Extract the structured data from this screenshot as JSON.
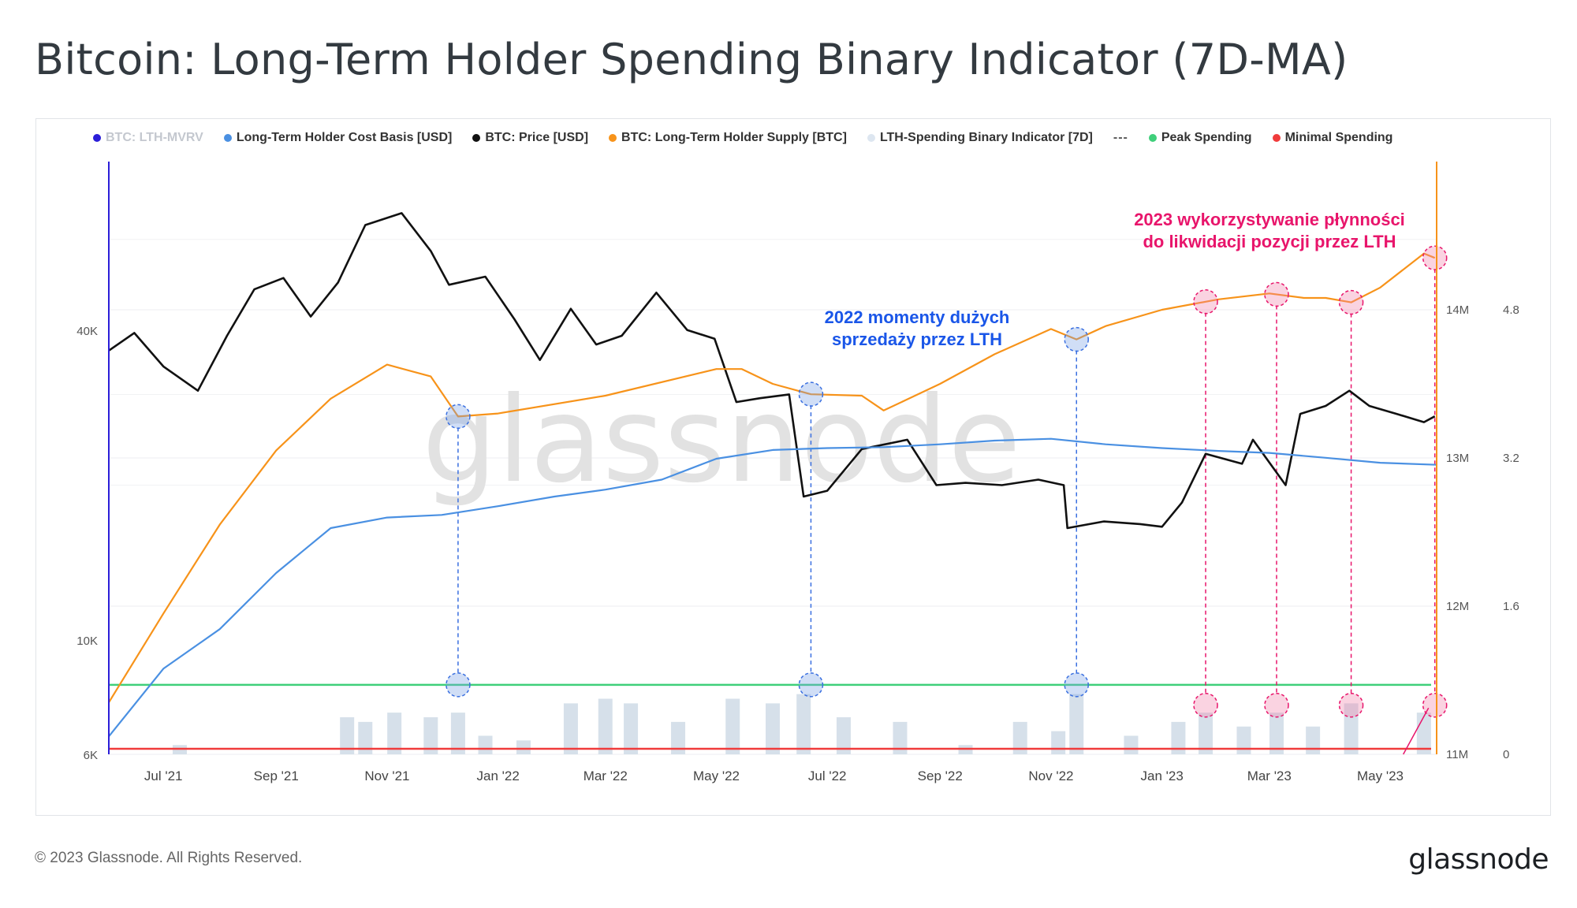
{
  "page": {
    "title": "Bitcoin: Long-Term Holder Spending Binary Indicator (7D-MA)"
  },
  "legend": [
    {
      "label": "BTC: LTH-MVRV",
      "color": "#2b1ed8",
      "faded": true
    },
    {
      "label": "Long-Term Holder Cost Basis [USD]",
      "color": "#4a90e2",
      "faded": false
    },
    {
      "label": "BTC: Price [USD]",
      "color": "#111111",
      "faded": false
    },
    {
      "label": "BTC: Long-Term Holder Supply [BTC]",
      "color": "#f7931a",
      "faded": false
    },
    {
      "label": "LTH-Spending Binary Indicator [7D]",
      "color": "#dde6f0",
      "faded": false
    },
    {
      "label": "---",
      "color": null,
      "faded": false
    },
    {
      "label": "Peak Spending",
      "color": "#3fcf7a",
      "faded": false
    },
    {
      "label": "Minimal Spending",
      "color": "#f03b3b",
      "faded": false
    }
  ],
  "watermark": "glassnode",
  "footer": {
    "copyright": "© 2023 Glassnode. All Rights Reserved.",
    "logo": "glassnode"
  },
  "annotations": {
    "blue_line1": "2022 momenty dużych",
    "blue_line2": "sprzedaży przez LTH",
    "pink_line1": "2023 wykorzystywanie płynności",
    "pink_line2": "do likwidacji pozycji przez LTH"
  },
  "colors": {
    "price": "#111111",
    "cost_basis": "#4a90e2",
    "supply": "#f7931a",
    "indicator": "#d2dde8",
    "peak": "#3fcf7a",
    "minimal": "#f03b3b",
    "lth_mvrv_axis": "#2b1ed8",
    "blue_annotation": "#1a56e8",
    "pink_annotation": "#e8156b"
  },
  "chart_data": {
    "type": "line",
    "x_ticks": [
      "Jul '21",
      "Sep '21",
      "Nov '21",
      "Jan '22",
      "Mar '22",
      "May '22",
      "Jul '22",
      "Sep '22",
      "Nov '22",
      "Jan '23",
      "Mar '23",
      "May '23"
    ],
    "x_range": [
      "2021-06-01",
      "2023-06-01"
    ],
    "y_left": {
      "label": "",
      "scale": "log",
      "ticks": [
        "6K",
        "10K",
        "40K"
      ],
      "range": [
        6000,
        85000
      ]
    },
    "y_supply": {
      "ticks": [
        "11M",
        "12M",
        "13M",
        "14M"
      ],
      "range": [
        11000000,
        15000000
      ]
    },
    "y_mvrv": {
      "ticks": [
        "0",
        "1.6",
        "3.2",
        "4.8"
      ],
      "range": [
        0,
        6.4
      ]
    },
    "series": [
      {
        "name": "BTC: Price [USD]",
        "axis": "left",
        "points": [
          [
            "2021-06-01",
            36500
          ],
          [
            "2021-06-15",
            39500
          ],
          [
            "2021-07-01",
            34000
          ],
          [
            "2021-07-20",
            30500
          ],
          [
            "2021-08-05",
            39000
          ],
          [
            "2021-08-20",
            48000
          ],
          [
            "2021-09-05",
            50500
          ],
          [
            "2021-09-20",
            42500
          ],
          [
            "2021-10-05",
            49500
          ],
          [
            "2021-10-20",
            64000
          ],
          [
            "2021-11-09",
            67500
          ],
          [
            "2021-11-25",
            57000
          ],
          [
            "2021-12-05",
            49000
          ],
          [
            "2021-12-25",
            50800
          ],
          [
            "2022-01-10",
            42000
          ],
          [
            "2022-01-24",
            35000
          ],
          [
            "2022-02-10",
            44000
          ],
          [
            "2022-02-24",
            37500
          ],
          [
            "2022-03-10",
            39000
          ],
          [
            "2022-03-29",
            47300
          ],
          [
            "2022-04-15",
            40000
          ],
          [
            "2022-04-30",
            38500
          ],
          [
            "2022-05-12",
            29000
          ],
          [
            "2022-05-25",
            29500
          ],
          [
            "2022-06-10",
            30000
          ],
          [
            "2022-06-18",
            19000
          ],
          [
            "2022-07-01",
            19500
          ],
          [
            "2022-07-20",
            23500
          ],
          [
            "2022-08-14",
            24500
          ],
          [
            "2022-08-30",
            20000
          ],
          [
            "2022-09-15",
            20200
          ],
          [
            "2022-10-05",
            20000
          ],
          [
            "2022-10-25",
            20500
          ],
          [
            "2022-11-08",
            20000
          ],
          [
            "2022-11-10",
            16500
          ],
          [
            "2022-11-30",
            17000
          ],
          [
            "2022-12-20",
            16800
          ],
          [
            "2023-01-01",
            16600
          ],
          [
            "2023-01-12",
            18500
          ],
          [
            "2023-01-25",
            23000
          ],
          [
            "2023-02-14",
            22000
          ],
          [
            "2023-02-20",
            24500
          ],
          [
            "2023-03-10",
            20000
          ],
          [
            "2023-03-18",
            27500
          ],
          [
            "2023-04-01",
            28500
          ],
          [
            "2023-04-14",
            30500
          ],
          [
            "2023-04-25",
            28500
          ],
          [
            "2023-05-10",
            27500
          ],
          [
            "2023-05-25",
            26500
          ],
          [
            "2023-05-31",
            27200
          ]
        ]
      },
      {
        "name": "Long-Term Holder Cost Basis [USD]",
        "axis": "left",
        "points": [
          [
            "2021-06-01",
            6500
          ],
          [
            "2021-07-01",
            8800
          ],
          [
            "2021-08-01",
            10500
          ],
          [
            "2021-09-01",
            13500
          ],
          [
            "2021-10-01",
            16500
          ],
          [
            "2021-11-01",
            17300
          ],
          [
            "2021-12-01",
            17500
          ],
          [
            "2022-01-01",
            18200
          ],
          [
            "2022-02-01",
            19000
          ],
          [
            "2022-03-01",
            19600
          ],
          [
            "2022-04-01",
            20500
          ],
          [
            "2022-05-01",
            22500
          ],
          [
            "2022-06-01",
            23400
          ],
          [
            "2022-07-01",
            23600
          ],
          [
            "2022-08-01",
            23700
          ],
          [
            "2022-09-01",
            24000
          ],
          [
            "2022-10-01",
            24400
          ],
          [
            "2022-11-01",
            24600
          ],
          [
            "2022-12-01",
            24000
          ],
          [
            "2023-01-01",
            23600
          ],
          [
            "2023-02-01",
            23300
          ],
          [
            "2023-03-01",
            23100
          ],
          [
            "2023-04-01",
            22600
          ],
          [
            "2023-05-01",
            22100
          ],
          [
            "2023-06-01",
            21900
          ]
        ]
      },
      {
        "name": "BTC: Long-Term Holder Supply [BTC]",
        "axis": "supply",
        "points": [
          [
            "2021-06-01",
            11350000
          ],
          [
            "2021-07-01",
            11950000
          ],
          [
            "2021-08-01",
            12550000
          ],
          [
            "2021-09-01",
            13050000
          ],
          [
            "2021-10-01",
            13400000
          ],
          [
            "2021-11-01",
            13630000
          ],
          [
            "2021-11-25",
            13550000
          ],
          [
            "2021-12-10",
            13280000
          ],
          [
            "2022-01-01",
            13300000
          ],
          [
            "2022-03-01",
            13420000
          ],
          [
            "2022-05-01",
            13600000
          ],
          [
            "2022-05-15",
            13600000
          ],
          [
            "2022-06-01",
            13500000
          ],
          [
            "2022-06-22",
            13430000
          ],
          [
            "2022-07-20",
            13420000
          ],
          [
            "2022-08-01",
            13320000
          ],
          [
            "2022-09-01",
            13500000
          ],
          [
            "2022-10-01",
            13700000
          ],
          [
            "2022-11-01",
            13870000
          ],
          [
            "2022-11-15",
            13800000
          ],
          [
            "2022-12-01",
            13890000
          ],
          [
            "2023-01-01",
            14000000
          ],
          [
            "2023-02-01",
            14070000
          ],
          [
            "2023-03-01",
            14110000
          ],
          [
            "2023-03-20",
            14080000
          ],
          [
            "2023-04-01",
            14080000
          ],
          [
            "2023-04-15",
            14050000
          ],
          [
            "2023-05-01",
            14150000
          ],
          [
            "2023-05-25",
            14380000
          ],
          [
            "2023-05-31",
            14350000
          ]
        ]
      },
      {
        "name": "LTH-Spending Binary Indicator [7D]",
        "axis": "mvrv",
        "type": "bar",
        "points": [
          [
            "2021-07-10",
            0.1
          ],
          [
            "2021-10-10",
            0.4
          ],
          [
            "2021-10-20",
            0.35
          ],
          [
            "2021-11-05",
            0.45
          ],
          [
            "2021-11-25",
            0.4
          ],
          [
            "2021-12-10",
            0.45
          ],
          [
            "2021-12-25",
            0.2
          ],
          [
            "2022-01-15",
            0.15
          ],
          [
            "2022-02-10",
            0.55
          ],
          [
            "2022-03-01",
            0.6
          ],
          [
            "2022-03-15",
            0.55
          ],
          [
            "2022-04-10",
            0.35
          ],
          [
            "2022-05-10",
            0.6
          ],
          [
            "2022-06-01",
            0.55
          ],
          [
            "2022-06-18",
            0.65
          ],
          [
            "2022-07-10",
            0.4
          ],
          [
            "2022-08-10",
            0.35
          ],
          [
            "2022-09-15",
            0.1
          ],
          [
            "2022-10-15",
            0.35
          ],
          [
            "2022-11-05",
            0.25
          ],
          [
            "2022-11-15",
            0.65
          ],
          [
            "2022-12-15",
            0.2
          ],
          [
            "2023-01-10",
            0.35
          ],
          [
            "2023-01-25",
            0.45
          ],
          [
            "2023-02-15",
            0.3
          ],
          [
            "2023-03-05",
            0.45
          ],
          [
            "2023-03-25",
            0.3
          ],
          [
            "2023-04-15",
            0.55
          ],
          [
            "2023-05-25",
            0.45
          ]
        ]
      }
    ],
    "reference_lines": [
      {
        "name": "Peak Spending",
        "axis": "mvrv",
        "value": 0.75
      },
      {
        "name": "Minimal Spending",
        "axis": "mvrv",
        "value": 0.06
      }
    ],
    "highlighted_dates_blue": [
      "2021-12-10",
      "2022-06-22",
      "2022-11-15"
    ],
    "highlighted_dates_pink": [
      "2023-01-25",
      "2023-03-05",
      "2023-04-15",
      "2023-05-31"
    ],
    "grid": true,
    "legend_position": "top"
  }
}
